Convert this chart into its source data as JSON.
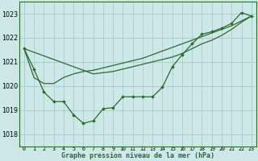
{
  "title": "Graphe pression niveau de la mer (hPa)",
  "bg_color": "#cce8e8",
  "grid_color": "#aacccc",
  "line_color": "#2d6a2d",
  "hours": [
    0,
    1,
    2,
    3,
    4,
    5,
    6,
    7,
    8,
    9,
    10,
    11,
    12,
    13,
    14,
    15,
    16,
    17,
    18,
    19,
    20,
    21,
    22,
    23
  ],
  "p_main": [
    1021.55,
    1020.7,
    1019.75,
    1019.35,
    1019.35,
    1018.8,
    1018.45,
    1018.55,
    1019.05,
    1019.1,
    1019.55,
    1019.55,
    1019.55,
    1019.55,
    1019.95,
    1020.8,
    1021.3,
    1021.75,
    1022.15,
    1022.25,
    1022.4,
    1022.6,
    1023.05,
    1022.9
  ],
  "p_straight": [
    1021.55,
    1021.4,
    1021.25,
    1021.1,
    1020.95,
    1020.8,
    1020.65,
    1020.5,
    1020.55,
    1020.6,
    1020.7,
    1020.8,
    1020.9,
    1021.0,
    1021.1,
    1021.2,
    1021.35,
    1021.55,
    1021.75,
    1021.9,
    1022.1,
    1022.35,
    1022.65,
    1022.9
  ],
  "p_cross": [
    1021.55,
    1020.35,
    1020.1,
    1020.1,
    1020.35,
    1020.5,
    1020.6,
    1020.65,
    1020.75,
    1020.85,
    1020.95,
    1021.05,
    1021.15,
    1021.3,
    1021.45,
    1021.6,
    1021.75,
    1021.9,
    1022.05,
    1022.2,
    1022.35,
    1022.5,
    1022.7,
    1022.9
  ],
  "ylim_min": 1017.5,
  "ylim_max": 1023.5,
  "yticks": [
    1018,
    1019,
    1020,
    1021,
    1022,
    1023
  ]
}
